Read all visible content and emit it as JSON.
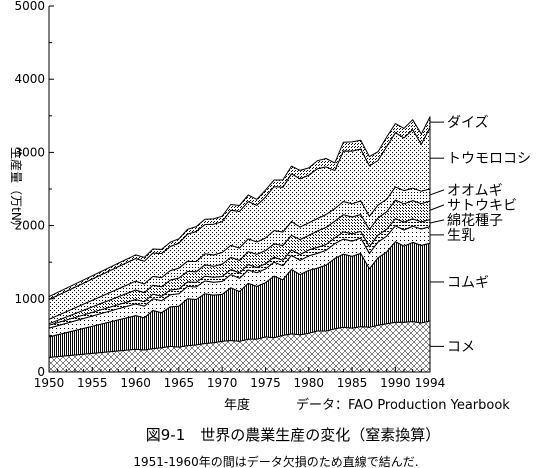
{
  "figure": {
    "caption": "図9-1　世界の農業生産の変化（窒素換算）",
    "note": "1951-1960年の間はデータ欠損のため直線で結んだ.",
    "source": "データ：FAO Production Yearbook"
  },
  "chart_data": {
    "type": "area",
    "stacked": true,
    "xlabel": "年度",
    "ylabel": "生産量（万tN）",
    "xlim": [
      1950,
      1994
    ],
    "ylim": [
      0,
      5000
    ],
    "xticks": [
      1950,
      1955,
      1960,
      1965,
      1970,
      1975,
      1980,
      1985,
      1990,
      1994
    ],
    "yticks": [
      0,
      1000,
      2000,
      3000,
      4000,
      5000
    ],
    "legend": "labels at right edge",
    "x": [
      1950,
      1960,
      1961,
      1962,
      1963,
      1964,
      1965,
      1966,
      1967,
      1968,
      1969,
      1970,
      1971,
      1972,
      1973,
      1974,
      1975,
      1976,
      1977,
      1978,
      1979,
      1980,
      1981,
      1982,
      1983,
      1984,
      1985,
      1986,
      1987,
      1988,
      1989,
      1990,
      1991,
      1992,
      1993,
      1994
    ],
    "series": [
      {
        "name": "コメ",
        "values": [
          200,
          310,
          300,
          320,
          330,
          350,
          340,
          360,
          370,
          390,
          400,
          420,
          430,
          420,
          450,
          450,
          480,
          470,
          500,
          520,
          510,
          530,
          560,
          560,
          590,
          610,
          600,
          620,
          610,
          640,
          660,
          680,
          680,
          690,
          670,
          700
        ]
      },
      {
        "name": "コムギ",
        "values": [
          280,
          460,
          440,
          520,
          480,
          540,
          560,
          640,
          620,
          680,
          650,
          640,
          720,
          680,
          760,
          720,
          740,
          840,
          760,
          880,
          820,
          860,
          860,
          900,
          960,
          1000,
          980,
          1000,
          800,
          920,
          980,
          1100,
          1040,
          1080,
          1060,
          1060
        ]
      },
      {
        "name": "生乳",
        "values": [
          120,
          160,
          160,
          162,
          164,
          166,
          168,
          170,
          172,
          174,
          176,
          178,
          180,
          182,
          184,
          186,
          188,
          190,
          192,
          194,
          196,
          198,
          200,
          202,
          204,
          206,
          208,
          210,
          212,
          214,
          216,
          218,
          220,
          222,
          224,
          226
        ]
      },
      {
        "name": "綿花種子",
        "values": [
          40,
          60,
          60,
          62,
          60,
          64,
          66,
          64,
          62,
          66,
          68,
          66,
          70,
          72,
          74,
          72,
          70,
          68,
          76,
          74,
          78,
          80,
          82,
          80,
          78,
          98,
          100,
          92,
          90,
          96,
          94,
          96,
          108,
          100,
          96,
          98
        ]
      },
      {
        "name": "サトウキビ",
        "values": [
          20,
          130,
          125,
          120,
          130,
          135,
          150,
          140,
          145,
          155,
          150,
          170,
          165,
          170,
          175,
          180,
          180,
          185,
          200,
          200,
          205,
          200,
          225,
          235,
          230,
          235,
          230,
          230,
          235,
          235,
          240,
          255,
          250,
          250,
          250,
          252
        ]
      },
      {
        "name": "オオムギ",
        "values": [
          60,
          120,
          118,
          122,
          125,
          130,
          135,
          140,
          140,
          150,
          155,
          160,
          165,
          170,
          175,
          170,
          172,
          180,
          185,
          190,
          170,
          170,
          170,
          175,
          170,
          180,
          180,
          185,
          180,
          175,
          170,
          180,
          180,
          170,
          170,
          165
        ]
      },
      {
        "name": "トウモロコシ",
        "values": [
          270,
          310,
          310,
          320,
          330,
          330,
          340,
          370,
          410,
          400,
          420,
          420,
          480,
          500,
          510,
          500,
          560,
          600,
          610,
          650,
          660,
          650,
          680,
          650,
          520,
          690,
          720,
          710,
          690,
          610,
          720,
          740,
          720,
          800,
          640,
          840
        ]
      },
      {
        "name": "ダイズ",
        "values": [
          40,
          50,
          52,
          54,
          56,
          58,
          60,
          64,
          68,
          72,
          72,
          75,
          78,
          80,
          90,
          80,
          95,
          90,
          100,
          105,
          115,
          100,
          110,
          115,
          105,
          120,
          125,
          120,
          125,
          120,
          130,
          125,
          130,
          135,
          140,
          145
        ]
      }
    ]
  }
}
